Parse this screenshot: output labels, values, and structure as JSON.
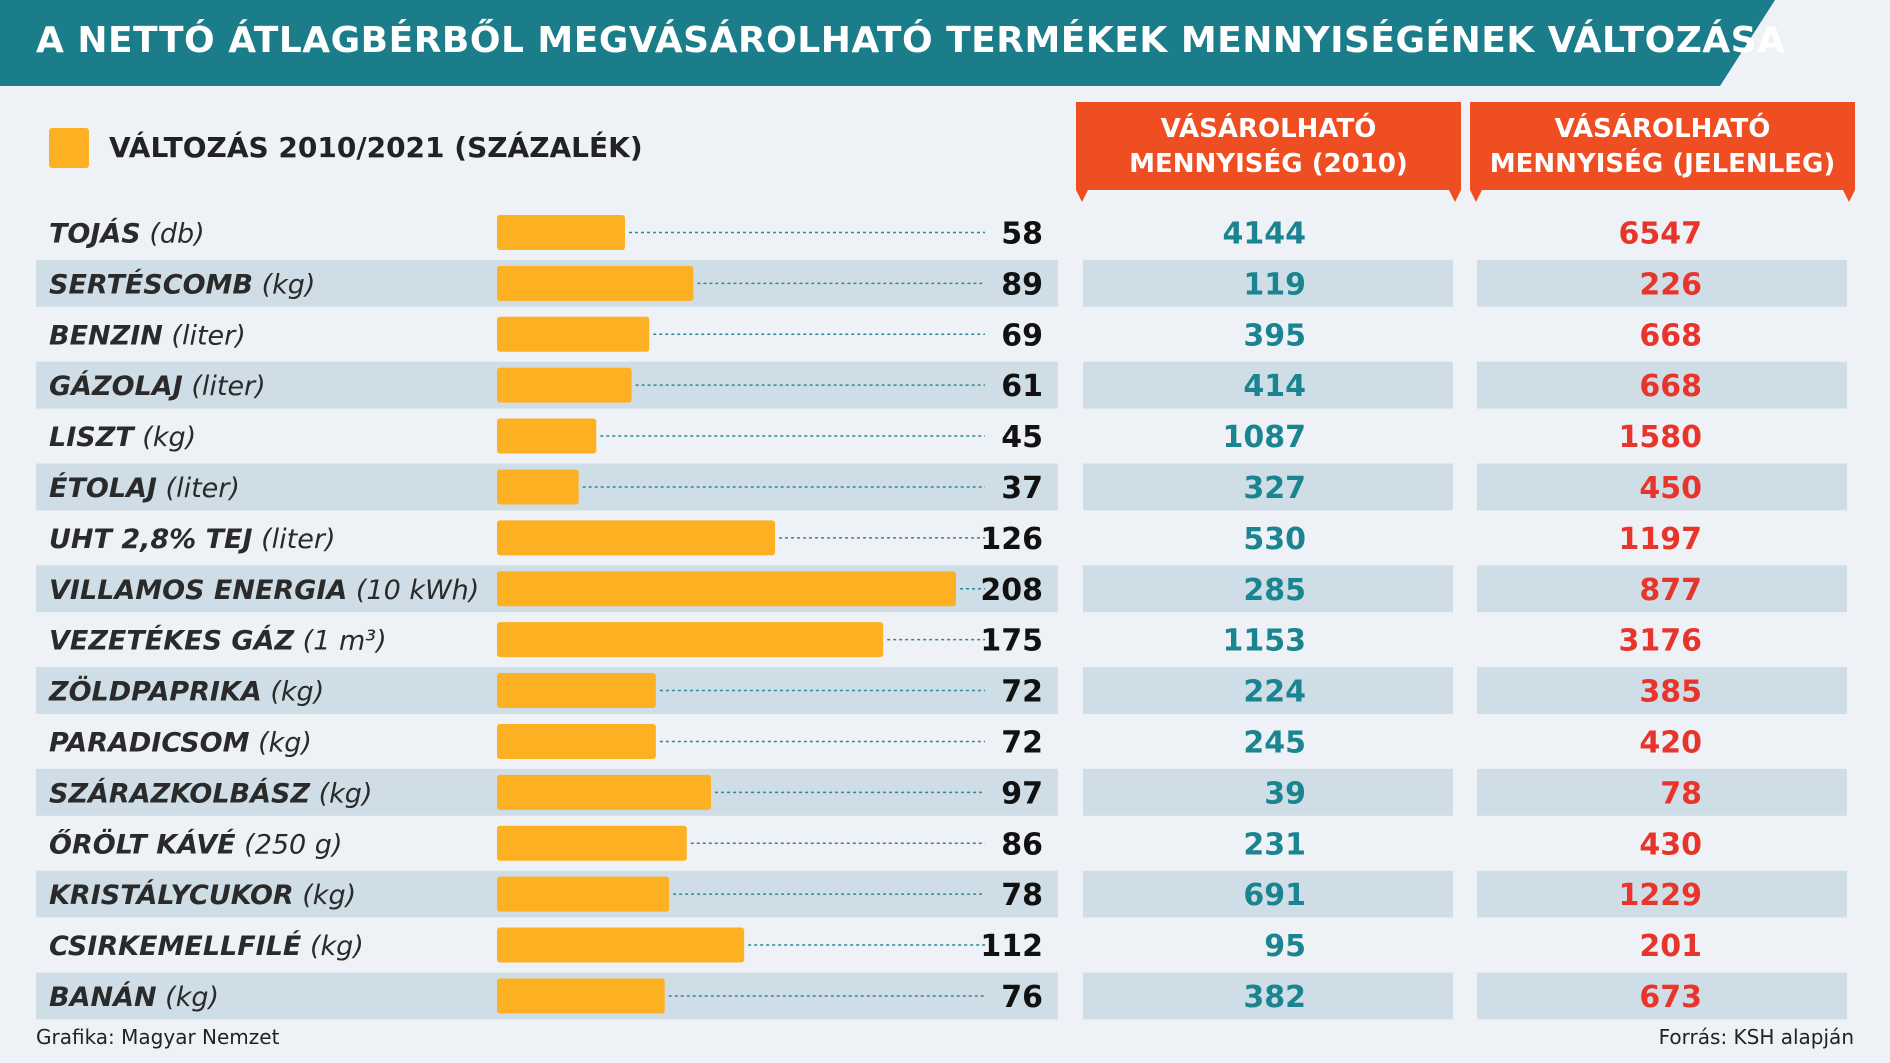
{
  "title": "A NETTÓ ÁTLAGBÉRBŐL MEGVÁSÁROLHATÓ TERMÉKEK MENNYISÉGÉNEK VÁLTOZÁSA",
  "legend": {
    "label": "VÁLTOZÁS 2010/2021 (SZÁZALÉK)"
  },
  "columns": {
    "col2010": {
      "line1": "VÁSÁROLHATÓ",
      "line2": "MENNYISÉG (2010)"
    },
    "colnow": {
      "line1": "VÁSÁROLHATÓ",
      "line2": "MENNYISÉG (JELENLEG)"
    }
  },
  "footer": {
    "left": "Grafika: Magyar Nemzet",
    "right": "Forrás: KSH alapján"
  },
  "colors": {
    "banner": "#1c7d8a",
    "bar": "#fdb022",
    "header": "#ef4e23",
    "value2010": "#1a8591",
    "valueNow": "#e8352b",
    "stripe": "#cfdee6",
    "background": "#eef1f5"
  },
  "chart_data": {
    "type": "bar",
    "orientation": "horizontal",
    "categories": [
      {
        "name": "TOJÁS",
        "unit": "(db)"
      },
      {
        "name": "SERTÉSCOMB",
        "unit": "(kg)"
      },
      {
        "name": "BENZIN",
        "unit": "(liter)"
      },
      {
        "name": "GÁZOLAJ",
        "unit": "(liter)"
      },
      {
        "name": "LISZT",
        "unit": "(kg)"
      },
      {
        "name": "ÉTOLAJ",
        "unit": "(liter)"
      },
      {
        "name": "UHT 2,8% TEJ",
        "unit": "(liter)"
      },
      {
        "name": "VILLAMOS ENERGIA",
        "unit": "(10 kWh)"
      },
      {
        "name": "VEZETÉKES GÁZ",
        "unit": "(1 m³)"
      },
      {
        "name": "ZÖLDPAPRIKA",
        "unit": "(kg)"
      },
      {
        "name": "PARADICSOM",
        "unit": "(kg)"
      },
      {
        "name": "SZÁRAZKOLBÁSZ",
        "unit": "(kg)"
      },
      {
        "name": "ŐRÖLT KÁVÉ",
        "unit": "(250 g)"
      },
      {
        "name": "KRISTÁLYCUKOR",
        "unit": "(kg)"
      },
      {
        "name": "CSIRKEMELLFILÉ",
        "unit": "(kg)"
      },
      {
        "name": "BANÁN",
        "unit": "(kg)"
      }
    ],
    "series": [
      {
        "name": "VÁLTOZÁS 2010/2021 (SZÁZALÉK)",
        "values": [
          58,
          89,
          69,
          61,
          45,
          37,
          126,
          208,
          175,
          72,
          72,
          97,
          86,
          78,
          112,
          76
        ]
      }
    ],
    "table": {
      "mennyiseg_2010": [
        4144,
        119,
        395,
        414,
        1087,
        327,
        530,
        285,
        1153,
        224,
        245,
        39,
        231,
        691,
        95,
        382
      ],
      "mennyiseg_jelenleg": [
        6547,
        226,
        668,
        668,
        1580,
        450,
        1197,
        877,
        3176,
        385,
        420,
        78,
        430,
        1229,
        201,
        673
      ]
    },
    "xlim": [
      0,
      208
    ]
  }
}
